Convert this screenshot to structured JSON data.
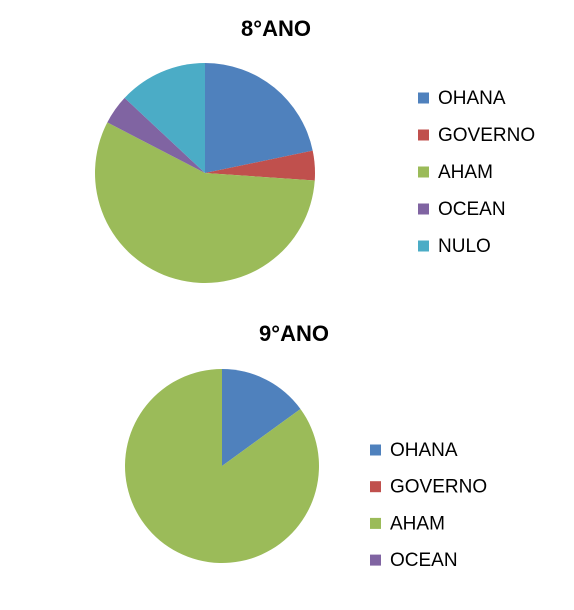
{
  "chart_data": [
    {
      "type": "pie",
      "title": "8°ANO",
      "categories": [
        "OHANA",
        "GOVERNO",
        "AHAM",
        "OCEAN",
        "NULO"
      ],
      "values": [
        5,
        1,
        13,
        1,
        3
      ],
      "colors": [
        "#4f81bd",
        "#c0504d",
        "#9bbb59",
        "#8064a2",
        "#4bacc6"
      ],
      "legend": "right"
    },
    {
      "type": "pie",
      "title": "9°ANO",
      "categories": [
        "OHANA",
        "GOVERNO",
        "AHAM",
        "OCEAN"
      ],
      "values": [
        3,
        0,
        17,
        0
      ],
      "colors": [
        "#4f81bd",
        "#c0504d",
        "#9bbb59",
        "#8064a2"
      ],
      "legend": "right"
    }
  ]
}
